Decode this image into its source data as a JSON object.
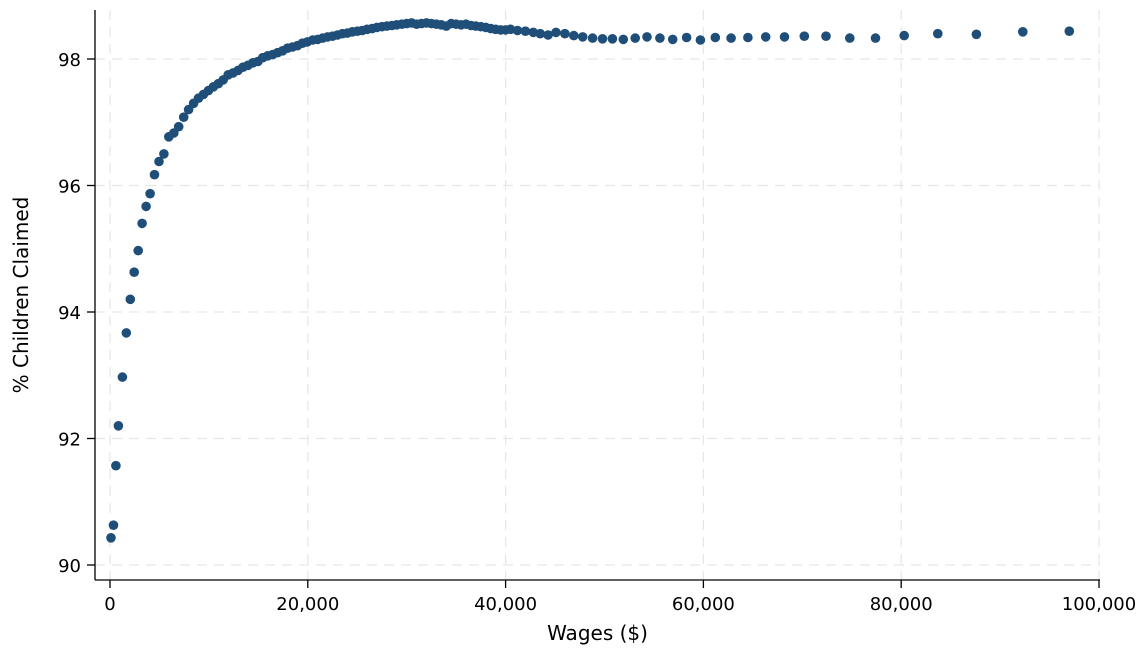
{
  "chart_data": {
    "type": "scatter",
    "title": "",
    "xlabel": "Wages ($)",
    "ylabel": "% Children Claimed",
    "xlim": [
      0,
      100000
    ],
    "ylim": [
      90,
      98.8
    ],
    "x_ticks": [
      0,
      20000,
      40000,
      60000,
      80000,
      100000
    ],
    "x_tick_labels": [
      "0",
      "20,000",
      "40,000",
      "60,000",
      "80,000",
      "100,000"
    ],
    "y_ticks": [
      90,
      92,
      94,
      96,
      98
    ],
    "y_tick_labels": [
      "90",
      "92",
      "94",
      "96",
      "98"
    ],
    "grid": true,
    "legend": "none",
    "marker_color": "#1f4e79",
    "series": [
      {
        "x": [
          100,
          350,
          600,
          850,
          1250,
          1650,
          2050,
          2450,
          2850,
          3250,
          3650,
          4050,
          4500,
          4950,
          5450,
          5950,
          6450,
          6950,
          7450,
          7950,
          8450,
          8950,
          9450,
          9950,
          10450,
          10950,
          11450,
          11950,
          12450,
          12950,
          13450,
          13950,
          14450,
          14950,
          15450,
          15950,
          16450,
          16950,
          17450,
          17950,
          18450,
          18950,
          19450,
          19950,
          20500,
          21000,
          21500,
          22000,
          22500,
          23000,
          23500,
          24000,
          24500,
          25000,
          25500,
          26000,
          26500,
          27000,
          27500,
          28000,
          28500,
          29000,
          29500,
          30000,
          30500,
          31000,
          31500,
          32000,
          32500,
          33000,
          33500,
          34000,
          34500,
          35000,
          35500,
          36000,
          36500,
          37000,
          37500,
          38000,
          38500,
          39000,
          39500,
          40000,
          40500,
          41200,
          42000,
          42800,
          43500,
          44300,
          45100,
          46000,
          46900,
          47800,
          48800,
          49800,
          50800,
          51900,
          53100,
          54300,
          55600,
          56900,
          58300,
          59700,
          61200,
          62800,
          64500,
          66300,
          68200,
          70200,
          72400,
          74800,
          77400,
          80300,
          83700,
          87600,
          92300,
          97000
        ],
        "y": [
          90.43,
          90.63,
          91.57,
          92.2,
          92.97,
          93.67,
          94.2,
          94.63,
          94.97,
          95.4,
          95.67,
          95.87,
          96.17,
          96.38,
          96.5,
          96.77,
          96.83,
          96.93,
          97.08,
          97.2,
          97.3,
          97.38,
          97.44,
          97.5,
          97.56,
          97.61,
          97.67,
          97.75,
          97.78,
          97.82,
          97.87,
          97.9,
          97.94,
          97.96,
          98.02,
          98.05,
          98.07,
          98.1,
          98.13,
          98.17,
          98.19,
          98.21,
          98.25,
          98.27,
          98.3,
          98.31,
          98.33,
          98.35,
          98.36,
          98.38,
          98.4,
          98.41,
          98.43,
          98.44,
          98.45,
          98.47,
          98.48,
          98.5,
          98.51,
          98.52,
          98.53,
          98.54,
          98.55,
          98.56,
          98.57,
          98.55,
          98.56,
          98.57,
          98.56,
          98.55,
          98.54,
          98.52,
          98.56,
          98.55,
          98.54,
          98.55,
          98.53,
          98.52,
          98.51,
          98.5,
          98.48,
          98.47,
          98.46,
          98.46,
          98.47,
          98.45,
          98.44,
          98.42,
          98.4,
          98.38,
          98.42,
          98.4,
          98.37,
          98.35,
          98.33,
          98.32,
          98.32,
          98.31,
          98.33,
          98.35,
          98.33,
          98.31,
          98.34,
          98.3,
          98.34,
          98.33,
          98.34,
          98.35,
          98.35,
          98.36,
          98.36,
          98.33,
          98.33,
          98.37,
          98.4,
          98.39,
          98.43,
          98.44
        ]
      }
    ]
  }
}
